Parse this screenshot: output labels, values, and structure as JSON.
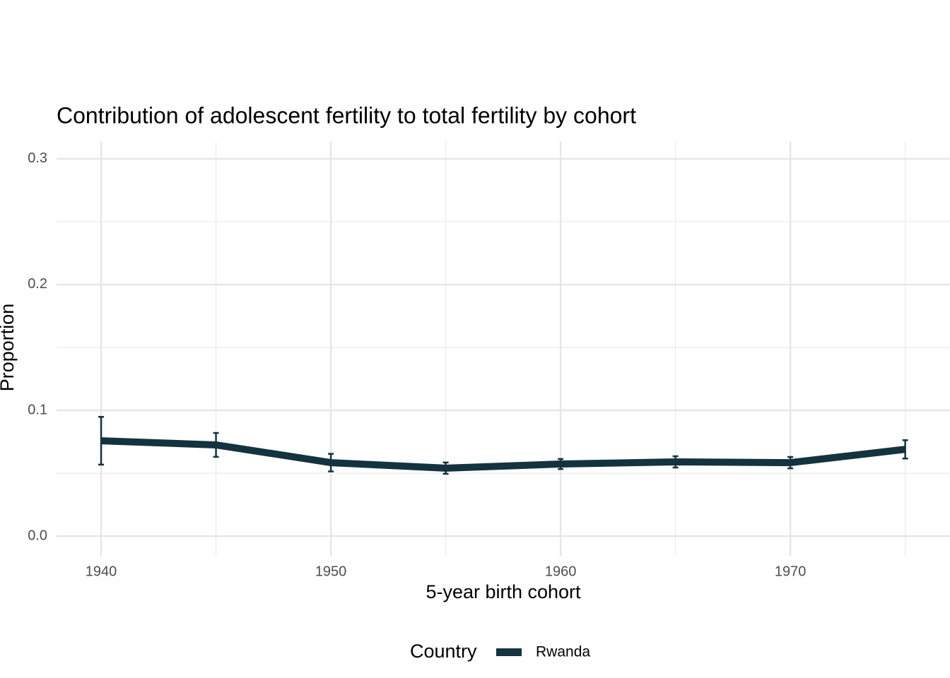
{
  "chart_data": {
    "type": "line",
    "title": "Contribution of adolescent fertility to total fertility by cohort",
    "x_label": "5-year birth cohort",
    "y_label": "Proportion",
    "legend_title": "Country",
    "legend_position": "bottom",
    "x": [
      1940,
      1945,
      1950,
      1955,
      1960,
      1965,
      1970,
      1975
    ],
    "series": [
      {
        "name": "Rwanda",
        "color": "#14333f",
        "values": [
          0.0758,
          0.0725,
          0.0584,
          0.054,
          0.0573,
          0.059,
          0.0584,
          0.069
        ],
        "errors": [
          0.019,
          0.0095,
          0.007,
          0.0045,
          0.004,
          0.0045,
          0.0045,
          0.0073
        ]
      }
    ],
    "xlim": [
      1938.06,
      1976.95
    ],
    "ylim": [
      -0.0157,
      0.314
    ],
    "xticks": [
      1940,
      1950,
      1960,
      1970
    ],
    "yticks": [
      {
        "value": 0,
        "label": "0.0"
      },
      0.1,
      0.2,
      0.3
    ],
    "x_minor_ticks": [
      1945,
      1955,
      1965,
      1975
    ],
    "y_minor_ticks": [
      0.05,
      0.15,
      0.25
    ],
    "grid": true
  }
}
